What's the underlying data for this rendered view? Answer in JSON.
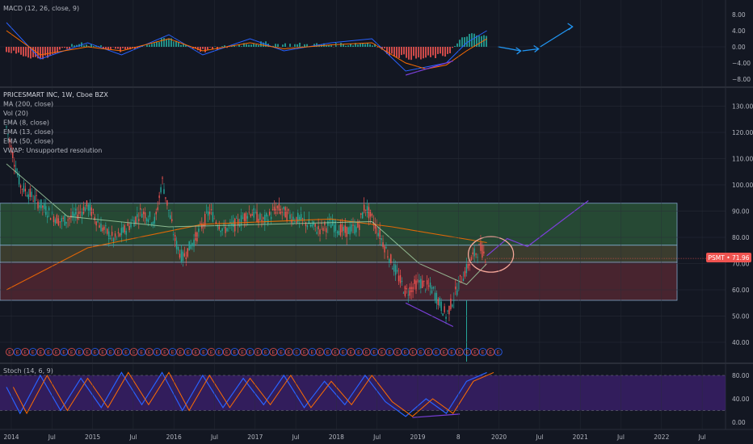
{
  "macd": {
    "label": "MACD (12, 26, close, 9)",
    "ticks": [
      "8.00",
      "4.00",
      "0.00",
      "−4.00",
      "−8.00"
    ]
  },
  "price": {
    "title": "PRICESMART INC, 1W, Cboe BZX",
    "studies": [
      "MA (200, close)",
      "Vol (20)",
      "EMA (8, close)",
      "EMA (13, close)",
      "EMA (50, close)",
      "VWAP: Unsupported resolution"
    ],
    "ticks": [
      "130.00",
      "120.00",
      "110.00",
      "100.00",
      "90.00",
      "80.00",
      "70.00",
      "60.00",
      "50.00",
      "40.00"
    ],
    "badge": "PSMT • 71.96"
  },
  "stoch": {
    "label": "Stoch (14, 6, 9)",
    "ticks": [
      "80.00",
      "40.00",
      "0.00"
    ]
  },
  "time_axis": [
    "2014",
    "Jul",
    "2015",
    "Jul",
    "2016",
    "Jul",
    "2017",
    "Jul",
    "2018",
    "Jul",
    "2019",
    "8",
    "2020",
    "Jul",
    "2021",
    "Jul",
    "2022",
    "Jul"
  ],
  "earnings_marker": "E",
  "colors": {
    "bg": "#131722",
    "up": "#26a69a",
    "down": "#ef5350",
    "grid": "#2a2e39",
    "text": "#b2b5be",
    "macd_line": "#2962ff",
    "signal_line": "#ff6d00",
    "annotation": "#7b3fd9",
    "arrow": "#2196f3",
    "circle": "#f5a89a",
    "zone_green": "#2e5b3b",
    "zone_red": "#5b2a34",
    "zone_border": "#7fa7c9"
  },
  "chart_data": {
    "type": "candlestick",
    "symbol": "PSMT",
    "interval": "1W",
    "exchange": "Cboe BZX",
    "last_price": 71.96,
    "price_range": [
      35,
      135
    ],
    "x_range": [
      "2014-01",
      "2022-12"
    ],
    "price_path": [
      [
        "2014-01",
        122
      ],
      [
        "2014-03",
        100
      ],
      [
        "2014-05",
        95
      ],
      [
        "2014-07",
        90
      ],
      [
        "2014-09",
        86
      ],
      [
        "2014-11",
        88
      ],
      [
        "2015-01",
        92
      ],
      [
        "2015-03",
        84
      ],
      [
        "2015-05",
        79
      ],
      [
        "2015-07",
        84
      ],
      [
        "2015-09",
        90
      ],
      [
        "2015-11",
        86
      ],
      [
        "2015-12",
        102
      ],
      [
        "2016-02",
        78
      ],
      [
        "2016-03",
        72
      ],
      [
        "2016-05",
        80
      ],
      [
        "2016-07",
        90
      ],
      [
        "2016-09",
        83
      ],
      [
        "2016-11",
        85
      ],
      [
        "2017-01",
        90
      ],
      [
        "2017-03",
        86
      ],
      [
        "2017-05",
        91
      ],
      [
        "2017-07",
        88
      ],
      [
        "2017-09",
        86
      ],
      [
        "2017-11",
        83
      ],
      [
        "2018-01",
        85
      ],
      [
        "2018-03",
        82
      ],
      [
        "2018-05",
        84
      ],
      [
        "2018-06",
        92
      ],
      [
        "2018-08",
        82
      ],
      [
        "2018-10",
        70
      ],
      [
        "2018-12",
        59
      ],
      [
        "2019-02",
        63
      ],
      [
        "2019-04",
        60
      ],
      [
        "2019-06",
        50
      ],
      [
        "2019-08",
        63
      ],
      [
        "2019-10",
        73
      ],
      [
        "2019-11",
        76
      ],
      [
        "2019-12",
        72
      ]
    ],
    "ma200": [
      [
        "2014-01",
        60
      ],
      [
        "2015-01",
        76
      ],
      [
        "2016-06",
        85
      ],
      [
        "2018-01",
        87
      ],
      [
        "2018-10",
        84
      ],
      [
        "2019-12",
        78
      ]
    ],
    "ema50": [
      [
        "2014-01",
        108
      ],
      [
        "2014-10",
        88
      ],
      [
        "2016-01",
        84
      ],
      [
        "2018-07",
        86
      ],
      [
        "2019-02",
        70
      ],
      [
        "2019-09",
        62
      ],
      [
        "2019-12",
        70
      ]
    ],
    "zones": [
      {
        "name": "upper",
        "from": 77,
        "to": 93
      },
      {
        "name": "middle",
        "from": 70.5,
        "to": 77
      },
      {
        "name": "lower",
        "from": 56,
        "to": 70.5
      }
    ],
    "projection": [
      [
        "2019-12",
        73
      ],
      [
        "2020-03",
        79.5
      ],
      [
        "2020-06",
        76.5
      ],
      [
        "2021-03",
        94
      ]
    ],
    "support_line": [
      [
        "2018-12",
        55
      ],
      [
        "2019-07",
        46
      ]
    ],
    "macd": {
      "range": [
        -10,
        10
      ],
      "histogram": [
        [
          "2014-01",
          -1
        ],
        [
          "2014-06",
          -3
        ],
        [
          "2014-12",
          1
        ],
        [
          "2015-06",
          -1
        ],
        [
          "2016-01",
          2
        ],
        [
          "2016-06",
          -1
        ],
        [
          "2017-01",
          1
        ],
        [
          "2017-06",
          0.5
        ],
        [
          "2018-01",
          0.5
        ],
        [
          "2018-07",
          1
        ],
        [
          "2018-10",
          -2
        ],
        [
          "2019-02",
          -3
        ],
        [
          "2019-06",
          -2
        ],
        [
          "2019-09",
          3
        ],
        [
          "2019-12",
          2.5
        ]
      ],
      "macd_line": [
        [
          "2014-01",
          6
        ],
        [
          "2014-06",
          -3
        ],
        [
          "2015-01",
          1
        ],
        [
          "2015-06",
          -2
        ],
        [
          "2016-01",
          3
        ],
        [
          "2016-06",
          -2
        ],
        [
          "2017-01",
          2
        ],
        [
          "2017-06",
          -1
        ],
        [
          "2018-01",
          1
        ],
        [
          "2018-07",
          2
        ],
        [
          "2018-12",
          -6
        ],
        [
          "2019-03",
          -5
        ],
        [
          "2019-06",
          -4
        ],
        [
          "2019-09",
          1
        ],
        [
          "2019-12",
          4
        ]
      ],
      "signal_line": [
        [
          "2014-01",
          4
        ],
        [
          "2014-06",
          -2
        ],
        [
          "2015-01",
          0
        ],
        [
          "2015-06",
          -1
        ],
        [
          "2016-01",
          2
        ],
        [
          "2016-06",
          -1
        ],
        [
          "2017-01",
          1
        ],
        [
          "2017-06",
          -0.5
        ],
        [
          "2018-01",
          0.5
        ],
        [
          "2018-07",
          1
        ],
        [
          "2018-12",
          -4
        ],
        [
          "2019-03",
          -5.5
        ],
        [
          "2019-06",
          -4.5
        ],
        [
          "2019-09",
          -1
        ],
        [
          "2019-12",
          2
        ]
      ],
      "divergence_line": [
        [
          -7,
          "2018-12"
        ],
        [
          -3.5,
          "2019-07"
        ]
      ]
    },
    "stoch": {
      "range": [
        -10,
        100
      ],
      "bands": [
        80,
        20
      ],
      "k": [
        [
          "2014-01",
          60
        ],
        [
          "2014-03",
          15
        ],
        [
          "2014-06",
          80
        ],
        [
          "2014-09",
          20
        ],
        [
          "2014-12",
          75
        ],
        [
          "2015-03",
          25
        ],
        [
          "2015-06",
          85
        ],
        [
          "2015-09",
          30
        ],
        [
          "2015-12",
          85
        ],
        [
          "2016-03",
          20
        ],
        [
          "2016-06",
          80
        ],
        [
          "2016-09",
          25
        ],
        [
          "2016-12",
          75
        ],
        [
          "2017-03",
          30
        ],
        [
          "2017-06",
          80
        ],
        [
          "2017-09",
          25
        ],
        [
          "2017-12",
          70
        ],
        [
          "2018-03",
          30
        ],
        [
          "2018-06",
          80
        ],
        [
          "2018-09",
          35
        ],
        [
          "2018-12",
          10
        ],
        [
          "2019-03",
          40
        ],
        [
          "2019-06",
          15
        ],
        [
          "2019-09",
          70
        ],
        [
          "2019-12",
          85
        ]
      ],
      "divergence_line": [
        [
          "2019-01",
          8
        ],
        [
          "2019-08",
          14
        ]
      ]
    }
  }
}
